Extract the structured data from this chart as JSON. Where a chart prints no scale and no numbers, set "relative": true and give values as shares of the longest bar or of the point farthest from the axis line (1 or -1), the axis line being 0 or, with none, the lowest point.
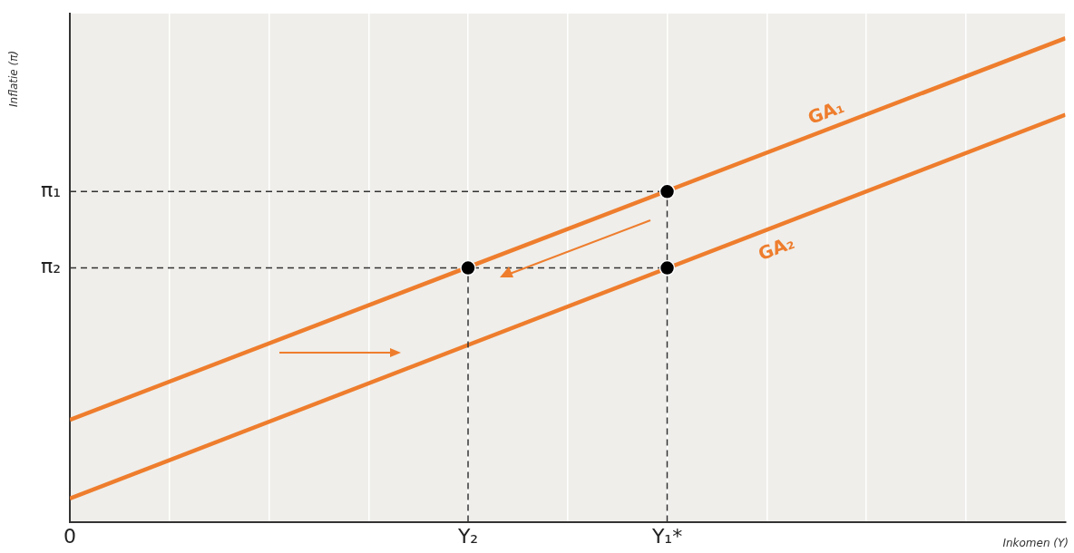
{
  "chart_data": {
    "type": "line",
    "xlabel": "Inkomen (Y)",
    "ylabel": "Inflatie (π)",
    "relative": true,
    "categories": [
      "0",
      null,
      null,
      null,
      "Y₂",
      null,
      "Y₁*",
      null,
      null,
      null,
      null
    ],
    "grid": "x",
    "legend": false,
    "series": [
      {
        "name": "GA₁",
        "color": "#ee7d2d",
        "values": [
          0.211,
          null,
          null,
          null,
          null,
          null,
          null,
          null,
          null,
          null,
          1
        ]
      },
      {
        "name": "GA₂",
        "color": "#ee7d2d",
        "values": [
          0.048,
          null,
          null,
          null,
          null,
          null,
          null,
          null,
          null,
          null,
          0.842
        ]
      },
      {
        "color": "#333333",
        "line_style": "dashed",
        "values": [
          0.683,
          null,
          null,
          null,
          null,
          null,
          0.683,
          null,
          null,
          null,
          null
        ]
      },
      {
        "color": "#333333",
        "line_style": "dashed",
        "x": [
          "Y₁*",
          "Y₁*"
        ],
        "values": [
          0,
          0.683
        ]
      },
      {
        "color": "#333333",
        "line_style": "dashed",
        "values": [
          0.525,
          null,
          null,
          null,
          null,
          null,
          0.525,
          null,
          null,
          null,
          null
        ]
      },
      {
        "color": "#333333",
        "line_style": "dashed",
        "x": [
          "Y₂",
          "Y₂"
        ],
        "values": [
          0,
          0.525
        ]
      },
      {
        "type": "scatter",
        "color": "#000000",
        "marker": "circle",
        "x": [
          "Y₂",
          "Y₁*",
          "Y₁*"
        ],
        "values": [
          0.525,
          0.683,
          0.525
        ]
      }
    ],
    "annotations": [
      {
        "text": "π₁",
        "x": "0",
        "y": 0.683
      },
      {
        "text": "π₂",
        "x": "0",
        "y": 0.525
      }
    ]
  }
}
